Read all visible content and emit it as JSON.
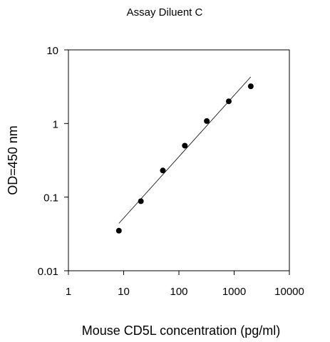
{
  "chart_data": {
    "type": "scatter",
    "title": "Assay Diluent C",
    "xlabel": "Mouse CD5L concentration (pg/ml)",
    "ylabel": "OD=450 nm",
    "xscale": "log",
    "yscale": "log",
    "xlim": [
      1,
      10000
    ],
    "ylim": [
      0.01,
      10
    ],
    "xticks": [
      1,
      10,
      100,
      1000,
      10000
    ],
    "xtick_labels": [
      "1",
      "10",
      "100",
      "1000",
      "10000"
    ],
    "yticks": [
      0.01,
      0.1,
      1,
      10
    ],
    "ytick_labels": [
      "0.01",
      "0.1",
      "1",
      "10"
    ],
    "grid": false,
    "legend": "none",
    "points": {
      "x": [
        8.2,
        20.5,
        51.2,
        128,
        320,
        800,
        2000
      ],
      "y": [
        0.035,
        0.088,
        0.23,
        0.5,
        1.08,
        2.0,
        3.2
      ]
    },
    "fit_line": {
      "x": [
        8.2,
        2000
      ],
      "y": [
        0.044,
        4.3
      ]
    },
    "colors": {
      "points": "#000000",
      "line": "#000000",
      "axes": "#000000"
    }
  }
}
